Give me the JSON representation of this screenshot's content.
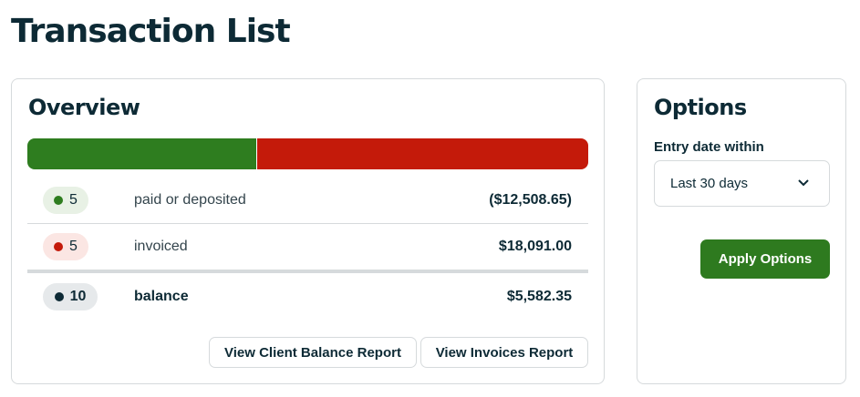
{
  "header": {
    "title": "Transaction List"
  },
  "overview": {
    "title": "Overview",
    "rows": [
      {
        "count": 5,
        "label": "paid or deposited",
        "amount": {
          "value": -12508.65,
          "label": "($12,508.65)"
        },
        "color": "#2e7d1f"
      },
      {
        "count": 5,
        "label": "invoiced",
        "amount": {
          "value": 18091.0,
          "label": "$18,091.00"
        },
        "color": "#c41a0a"
      }
    ],
    "balance": {
      "count": 10,
      "label": "balance",
      "amount": {
        "value": 5582.35,
        "label": "$5,582.35"
      },
      "color": "#0d2a35"
    },
    "buttons": [
      "View Client Balance Report",
      "View Invoices Report"
    ]
  },
  "options": {
    "title": "Options",
    "field_label": "Entry date within",
    "select_value": "Last 30 days",
    "apply_button": "Apply Options"
  }
}
